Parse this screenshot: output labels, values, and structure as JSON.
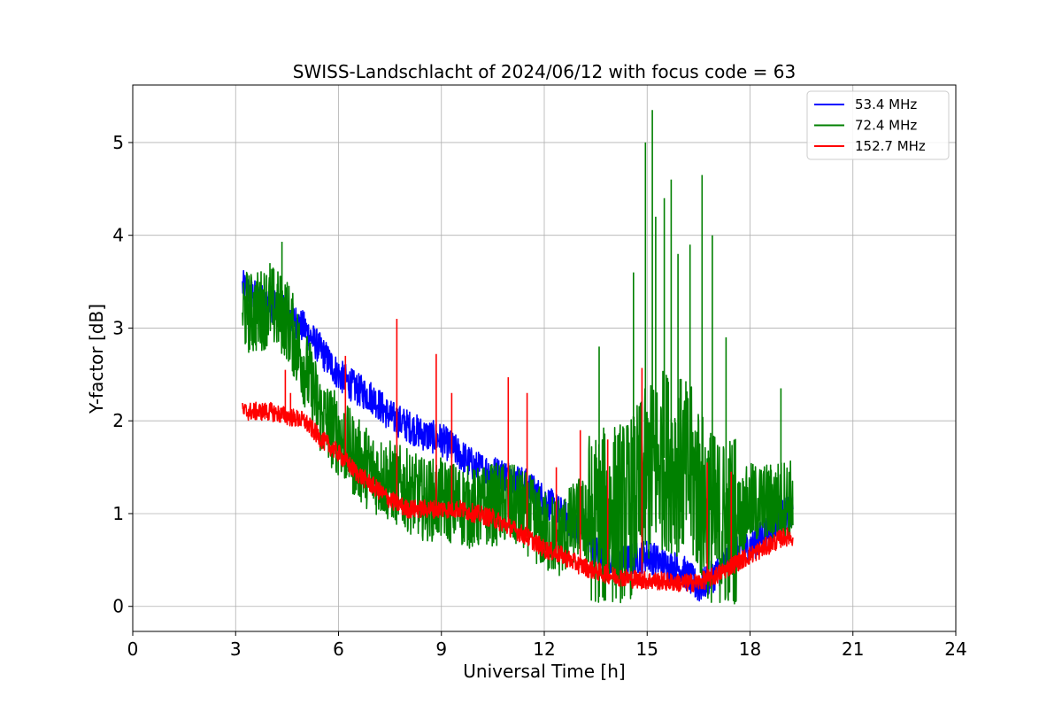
{
  "chart_data": {
    "type": "line",
    "title": "SWISS-Landschlacht of 2024/06/12 with focus code = 63",
    "xlabel": "Universal Time [h]",
    "ylabel": "Y-factor [dB]",
    "xlim": [
      0,
      24
    ],
    "ylim": [
      -0.27,
      5.62
    ],
    "xticks": [
      0,
      3,
      6,
      9,
      12,
      15,
      18,
      21,
      24
    ],
    "yticks": [
      0,
      1,
      2,
      3,
      4,
      5
    ],
    "grid": true,
    "legend_position": "top-right",
    "series": [
      {
        "name": "  53.4 MHz",
        "color": "#0000ff",
        "x": [
          3.2,
          3.5,
          4.0,
          4.5,
          5.0,
          5.5,
          6.0,
          6.5,
          7.0,
          7.5,
          8.0,
          8.5,
          9.0,
          9.5,
          10.0,
          10.5,
          11.0,
          11.5,
          12.0,
          12.5,
          13.0,
          13.5,
          14.0,
          14.5,
          15.0,
          15.5,
          16.0,
          16.5,
          17.0,
          17.5,
          18.0,
          18.5,
          19.0,
          19.25
        ],
        "y": [
          3.45,
          3.35,
          3.25,
          3.15,
          3.0,
          2.75,
          2.5,
          2.35,
          2.25,
          2.05,
          1.95,
          1.85,
          1.8,
          1.65,
          1.5,
          1.45,
          1.4,
          1.3,
          1.15,
          1.0,
          0.85,
          0.6,
          0.45,
          0.5,
          0.55,
          0.45,
          0.4,
          0.2,
          0.35,
          0.55,
          0.65,
          0.8,
          1.0,
          1.0
        ],
        "noise": 0.18
      },
      {
        "name": "  72.4 MHz",
        "color": "#008000",
        "x": [
          3.2,
          3.5,
          4.0,
          4.5,
          5.0,
          5.5,
          6.0,
          6.5,
          7.0,
          7.5,
          8.0,
          8.5,
          9.0,
          9.5,
          10.0,
          10.5,
          11.0,
          11.5,
          12.0,
          12.5,
          13.0,
          13.5,
          14.0,
          14.5,
          15.0,
          15.5,
          16.0,
          16.5,
          17.0,
          17.5,
          18.0,
          18.5,
          19.0,
          19.25
        ],
        "y": [
          3.2,
          3.15,
          3.25,
          3.1,
          2.6,
          2.05,
          1.85,
          1.6,
          1.45,
          1.35,
          1.25,
          1.15,
          1.15,
          1.1,
          1.05,
          1.1,
          1.1,
          1.0,
          0.8,
          0.75,
          0.95,
          0.9,
          1.0,
          1.05,
          1.4,
          1.6,
          1.5,
          1.3,
          0.85,
          0.9,
          1.1,
          1.1,
          1.15,
          1.15
        ],
        "noise": 0.45,
        "spikes": [
          [
            4.35,
            3.93
          ],
          [
            4.0,
            3.7
          ],
          [
            13.6,
            2.8
          ],
          [
            14.6,
            3.6
          ],
          [
            14.95,
            5.0
          ],
          [
            15.15,
            5.35
          ],
          [
            15.25,
            4.2
          ],
          [
            15.5,
            4.4
          ],
          [
            15.7,
            4.6
          ],
          [
            15.9,
            3.8
          ],
          [
            16.25,
            3.9
          ],
          [
            16.6,
            4.65
          ],
          [
            16.9,
            4.0
          ],
          [
            17.3,
            2.9
          ],
          [
            18.9,
            2.35
          ]
        ]
      },
      {
        "name": "  152.7 MHz",
        "color": "#ff0000",
        "x": [
          3.2,
          3.5,
          4.0,
          4.5,
          5.0,
          5.5,
          6.0,
          6.5,
          7.0,
          7.5,
          8.0,
          8.5,
          9.0,
          9.5,
          10.0,
          10.5,
          11.0,
          11.5,
          12.0,
          12.5,
          13.0,
          13.5,
          14.0,
          14.5,
          15.0,
          15.5,
          16.0,
          16.5,
          17.0,
          17.5,
          18.0,
          18.5,
          19.0,
          19.25
        ],
        "y": [
          2.1,
          2.1,
          2.1,
          2.05,
          2.0,
          1.8,
          1.65,
          1.45,
          1.3,
          1.15,
          1.05,
          1.05,
          1.05,
          1.05,
          1.0,
          0.95,
          0.85,
          0.75,
          0.62,
          0.55,
          0.45,
          0.38,
          0.33,
          0.3,
          0.28,
          0.27,
          0.25,
          0.26,
          0.33,
          0.45,
          0.55,
          0.65,
          0.75,
          0.75
        ],
        "noise": 0.1,
        "spikes": [
          [
            4.45,
            2.55
          ],
          [
            4.6,
            2.3
          ],
          [
            6.2,
            2.7
          ],
          [
            7.7,
            3.1
          ],
          [
            8.85,
            2.72
          ],
          [
            9.3,
            2.3
          ],
          [
            10.95,
            2.47
          ],
          [
            11.5,
            2.3
          ],
          [
            12.35,
            1.5
          ],
          [
            13.05,
            1.9
          ],
          [
            13.85,
            1.8
          ],
          [
            14.85,
            2.57
          ],
          [
            16.75,
            1.55
          ],
          [
            17.45,
            1.45
          ]
        ]
      }
    ]
  }
}
